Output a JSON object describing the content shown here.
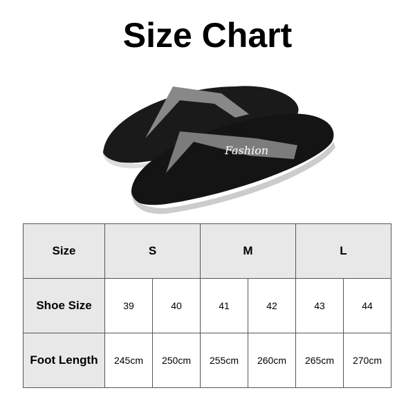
{
  "title": "Size Chart",
  "product_image": {
    "text": "Fashion"
  },
  "table": {
    "row_labels": [
      "Size",
      "Shoe Size",
      "Foot Length"
    ],
    "sizes": [
      "S",
      "M",
      "L"
    ],
    "shoe_sizes": [
      "39",
      "40",
      "41",
      "42",
      "43",
      "44"
    ],
    "foot_lengths": [
      "245cm",
      "250cm",
      "255cm",
      "260cm",
      "265cm",
      "270cm"
    ]
  }
}
